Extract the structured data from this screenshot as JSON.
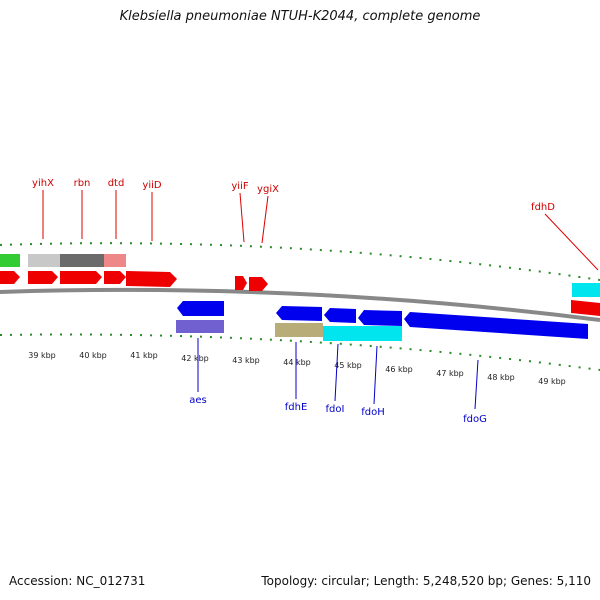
{
  "title": "Klebsiella pneumoniae NTUH-K2044, complete genome",
  "footer": {
    "accession": "Accession: NC_012731",
    "summary": "Topology: circular; Length: 5,248,520 bp; Genes: 5,110"
  },
  "kbp_labels": [
    "39 kbp",
    "40 kbp",
    "41 kbp",
    "42 kbp",
    "43 kbp",
    "44 kbp",
    "45 kbp",
    "46 kbp",
    "47 kbp",
    "48 kbp",
    "49 kbp"
  ],
  "top_genes": [
    "yihX",
    "rbn",
    "dtd",
    "yiiD",
    "yiiF",
    "ygiX",
    "fdhD"
  ],
  "bottom_genes": [
    "aes",
    "fdhE",
    "fdoI",
    "fdoH",
    "fdoG"
  ],
  "colors": {
    "forward_gene": "#ee0000",
    "reverse_gene": "#0000ee",
    "tick": "#2a8a2a",
    "backbone": "#888888"
  }
}
